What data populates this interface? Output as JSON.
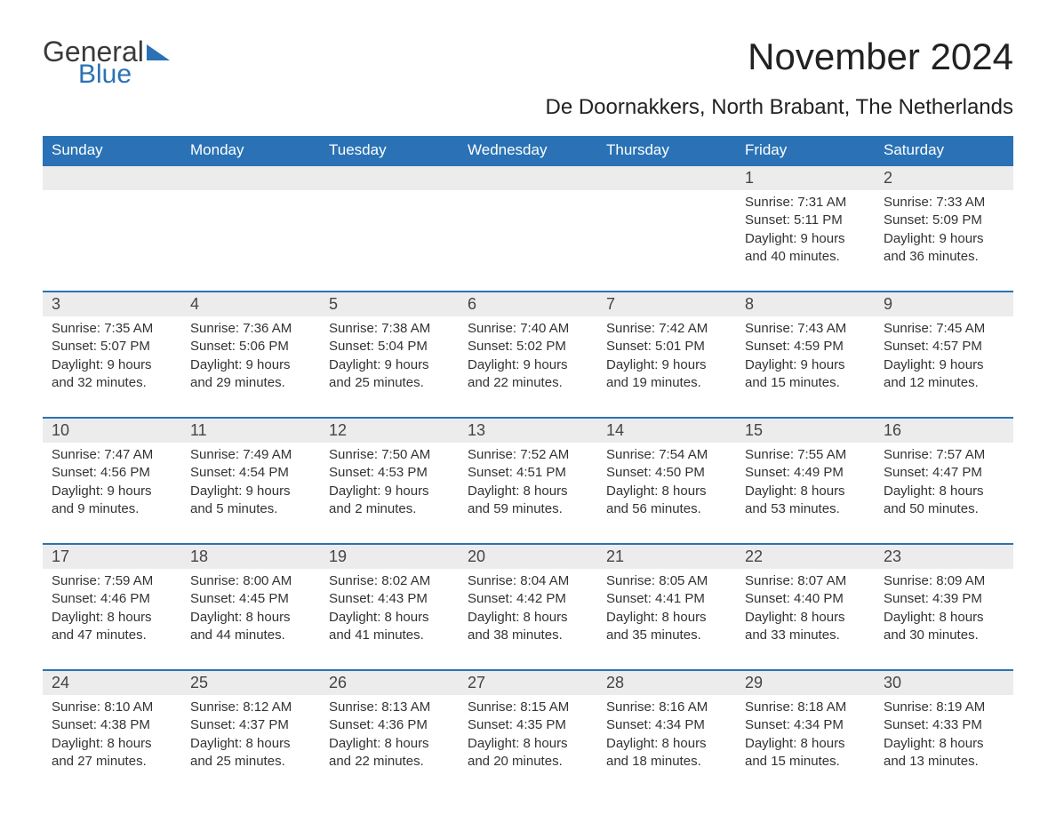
{
  "brand": {
    "general": "General",
    "blue": "Blue"
  },
  "title": "November 2024",
  "subtitle": "De Doornakkers, North Brabant, The Netherlands",
  "colors": {
    "accent": "#2a72b5",
    "daynum_bg": "#ececec",
    "text": "#333333",
    "bg": "#ffffff"
  },
  "calendar": {
    "type": "table",
    "columns": [
      "Sunday",
      "Monday",
      "Tuesday",
      "Wednesday",
      "Thursday",
      "Friday",
      "Saturday"
    ],
    "header_fontsize": 17,
    "daynum_fontsize": 18,
    "body_fontsize": 15,
    "weeks": [
      [
        null,
        null,
        null,
        null,
        null,
        {
          "n": "1",
          "sunrise": "Sunrise: 7:31 AM",
          "sunset": "Sunset: 5:11 PM",
          "d1": "Daylight: 9 hours",
          "d2": "and 40 minutes."
        },
        {
          "n": "2",
          "sunrise": "Sunrise: 7:33 AM",
          "sunset": "Sunset: 5:09 PM",
          "d1": "Daylight: 9 hours",
          "d2": "and 36 minutes."
        }
      ],
      [
        {
          "n": "3",
          "sunrise": "Sunrise: 7:35 AM",
          "sunset": "Sunset: 5:07 PM",
          "d1": "Daylight: 9 hours",
          "d2": "and 32 minutes."
        },
        {
          "n": "4",
          "sunrise": "Sunrise: 7:36 AM",
          "sunset": "Sunset: 5:06 PM",
          "d1": "Daylight: 9 hours",
          "d2": "and 29 minutes."
        },
        {
          "n": "5",
          "sunrise": "Sunrise: 7:38 AM",
          "sunset": "Sunset: 5:04 PM",
          "d1": "Daylight: 9 hours",
          "d2": "and 25 minutes."
        },
        {
          "n": "6",
          "sunrise": "Sunrise: 7:40 AM",
          "sunset": "Sunset: 5:02 PM",
          "d1": "Daylight: 9 hours",
          "d2": "and 22 minutes."
        },
        {
          "n": "7",
          "sunrise": "Sunrise: 7:42 AM",
          "sunset": "Sunset: 5:01 PM",
          "d1": "Daylight: 9 hours",
          "d2": "and 19 minutes."
        },
        {
          "n": "8",
          "sunrise": "Sunrise: 7:43 AM",
          "sunset": "Sunset: 4:59 PM",
          "d1": "Daylight: 9 hours",
          "d2": "and 15 minutes."
        },
        {
          "n": "9",
          "sunrise": "Sunrise: 7:45 AM",
          "sunset": "Sunset: 4:57 PM",
          "d1": "Daylight: 9 hours",
          "d2": "and 12 minutes."
        }
      ],
      [
        {
          "n": "10",
          "sunrise": "Sunrise: 7:47 AM",
          "sunset": "Sunset: 4:56 PM",
          "d1": "Daylight: 9 hours",
          "d2": "and 9 minutes."
        },
        {
          "n": "11",
          "sunrise": "Sunrise: 7:49 AM",
          "sunset": "Sunset: 4:54 PM",
          "d1": "Daylight: 9 hours",
          "d2": "and 5 minutes."
        },
        {
          "n": "12",
          "sunrise": "Sunrise: 7:50 AM",
          "sunset": "Sunset: 4:53 PM",
          "d1": "Daylight: 9 hours",
          "d2": "and 2 minutes."
        },
        {
          "n": "13",
          "sunrise": "Sunrise: 7:52 AM",
          "sunset": "Sunset: 4:51 PM",
          "d1": "Daylight: 8 hours",
          "d2": "and 59 minutes."
        },
        {
          "n": "14",
          "sunrise": "Sunrise: 7:54 AM",
          "sunset": "Sunset: 4:50 PM",
          "d1": "Daylight: 8 hours",
          "d2": "and 56 minutes."
        },
        {
          "n": "15",
          "sunrise": "Sunrise: 7:55 AM",
          "sunset": "Sunset: 4:49 PM",
          "d1": "Daylight: 8 hours",
          "d2": "and 53 minutes."
        },
        {
          "n": "16",
          "sunrise": "Sunrise: 7:57 AM",
          "sunset": "Sunset: 4:47 PM",
          "d1": "Daylight: 8 hours",
          "d2": "and 50 minutes."
        }
      ],
      [
        {
          "n": "17",
          "sunrise": "Sunrise: 7:59 AM",
          "sunset": "Sunset: 4:46 PM",
          "d1": "Daylight: 8 hours",
          "d2": "and 47 minutes."
        },
        {
          "n": "18",
          "sunrise": "Sunrise: 8:00 AM",
          "sunset": "Sunset: 4:45 PM",
          "d1": "Daylight: 8 hours",
          "d2": "and 44 minutes."
        },
        {
          "n": "19",
          "sunrise": "Sunrise: 8:02 AM",
          "sunset": "Sunset: 4:43 PM",
          "d1": "Daylight: 8 hours",
          "d2": "and 41 minutes."
        },
        {
          "n": "20",
          "sunrise": "Sunrise: 8:04 AM",
          "sunset": "Sunset: 4:42 PM",
          "d1": "Daylight: 8 hours",
          "d2": "and 38 minutes."
        },
        {
          "n": "21",
          "sunrise": "Sunrise: 8:05 AM",
          "sunset": "Sunset: 4:41 PM",
          "d1": "Daylight: 8 hours",
          "d2": "and 35 minutes."
        },
        {
          "n": "22",
          "sunrise": "Sunrise: 8:07 AM",
          "sunset": "Sunset: 4:40 PM",
          "d1": "Daylight: 8 hours",
          "d2": "and 33 minutes."
        },
        {
          "n": "23",
          "sunrise": "Sunrise: 8:09 AM",
          "sunset": "Sunset: 4:39 PM",
          "d1": "Daylight: 8 hours",
          "d2": "and 30 minutes."
        }
      ],
      [
        {
          "n": "24",
          "sunrise": "Sunrise: 8:10 AM",
          "sunset": "Sunset: 4:38 PM",
          "d1": "Daylight: 8 hours",
          "d2": "and 27 minutes."
        },
        {
          "n": "25",
          "sunrise": "Sunrise: 8:12 AM",
          "sunset": "Sunset: 4:37 PM",
          "d1": "Daylight: 8 hours",
          "d2": "and 25 minutes."
        },
        {
          "n": "26",
          "sunrise": "Sunrise: 8:13 AM",
          "sunset": "Sunset: 4:36 PM",
          "d1": "Daylight: 8 hours",
          "d2": "and 22 minutes."
        },
        {
          "n": "27",
          "sunrise": "Sunrise: 8:15 AM",
          "sunset": "Sunset: 4:35 PM",
          "d1": "Daylight: 8 hours",
          "d2": "and 20 minutes."
        },
        {
          "n": "28",
          "sunrise": "Sunrise: 8:16 AM",
          "sunset": "Sunset: 4:34 PM",
          "d1": "Daylight: 8 hours",
          "d2": "and 18 minutes."
        },
        {
          "n": "29",
          "sunrise": "Sunrise: 8:18 AM",
          "sunset": "Sunset: 4:34 PM",
          "d1": "Daylight: 8 hours",
          "d2": "and 15 minutes."
        },
        {
          "n": "30",
          "sunrise": "Sunrise: 8:19 AM",
          "sunset": "Sunset: 4:33 PM",
          "d1": "Daylight: 8 hours",
          "d2": "and 13 minutes."
        }
      ]
    ]
  }
}
